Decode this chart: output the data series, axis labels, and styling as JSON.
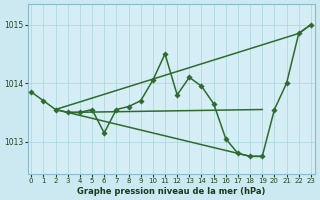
{
  "xlabel": "Graphe pression niveau de la mer (hPa)",
  "bg_color": "#cce8f0",
  "plot_bg_color": "#d5eef5",
  "line_color": "#2d6b2d",
  "grid_color": "#a8d4dc",
  "ylim": [
    1012.45,
    1015.35
  ],
  "xlim": [
    -0.3,
    23.3
  ],
  "yticks": [
    1013,
    1014,
    1015
  ],
  "xticks": [
    0,
    1,
    2,
    3,
    4,
    5,
    6,
    7,
    8,
    9,
    10,
    11,
    12,
    13,
    14,
    15,
    16,
    17,
    18,
    19,
    20,
    21,
    22,
    23
  ],
  "series_main": {
    "x": [
      0,
      1,
      2,
      3,
      4,
      5,
      6,
      7,
      8,
      9,
      10,
      11,
      12,
      13,
      14,
      15,
      16,
      17,
      18,
      19,
      20,
      21,
      22,
      23
    ],
    "y": [
      1013.85,
      1013.7,
      1013.55,
      1013.5,
      1013.5,
      1013.55,
      1013.15,
      1013.55,
      1013.6,
      1013.7,
      1014.05,
      1014.5,
      1013.8,
      1014.1,
      1013.95,
      1013.65,
      1013.05,
      1012.8,
      1012.75,
      1012.75,
      1013.55,
      1014.0,
      1014.85,
      1015.0
    ]
  },
  "series_diagonal": {
    "x": [
      2,
      22,
      23
    ],
    "y": [
      1013.55,
      1014.85,
      1015.0
    ]
  },
  "series_flat": {
    "x": [
      2,
      3,
      19
    ],
    "y": [
      1013.55,
      1013.5,
      1013.55
    ]
  },
  "series_down": {
    "x": [
      3,
      18,
      19
    ],
    "y": [
      1013.5,
      1012.75,
      1012.75
    ]
  },
  "series_from0": {
    "x": [
      0,
      2
    ],
    "y": [
      1013.85,
      1013.55
    ]
  }
}
